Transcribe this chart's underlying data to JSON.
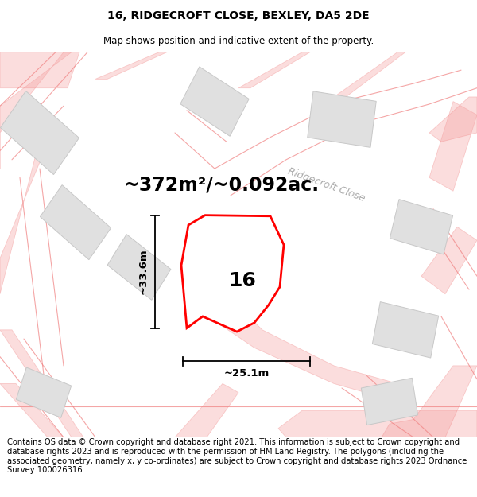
{
  "title": "16, RIDGECROFT CLOSE, BEXLEY, DA5 2DE",
  "subtitle": "Map shows position and indicative extent of the property.",
  "area_text": "~372m²/~0.092ac.",
  "dim_vertical": "~33.6m",
  "dim_horizontal": "~25.1m",
  "street_label": "Ridgecroft Close",
  "plot_number": "16",
  "copyright_text": "Contains OS data © Crown copyright and database right 2021. This information is subject to Crown copyright and database rights 2023 and is reproduced with the permission of HM Land Registry. The polygons (including the associated geometry, namely x, y co-ordinates) are subject to Crown copyright and database rights 2023 Ordnance Survey 100026316.",
  "bg_color": "#ffffff",
  "road_color": "#f5a0a0",
  "road_outline_color": "#f08080",
  "plot_color": "#ff0000",
  "building_color": "#e0e0e0",
  "building_edge": "#c8c8c8",
  "title_fontsize": 10,
  "subtitle_fontsize": 8.5,
  "area_fontsize": 17,
  "plot_label_fontsize": 18,
  "copyright_fontsize": 7.2,
  "street_fontsize": 9
}
